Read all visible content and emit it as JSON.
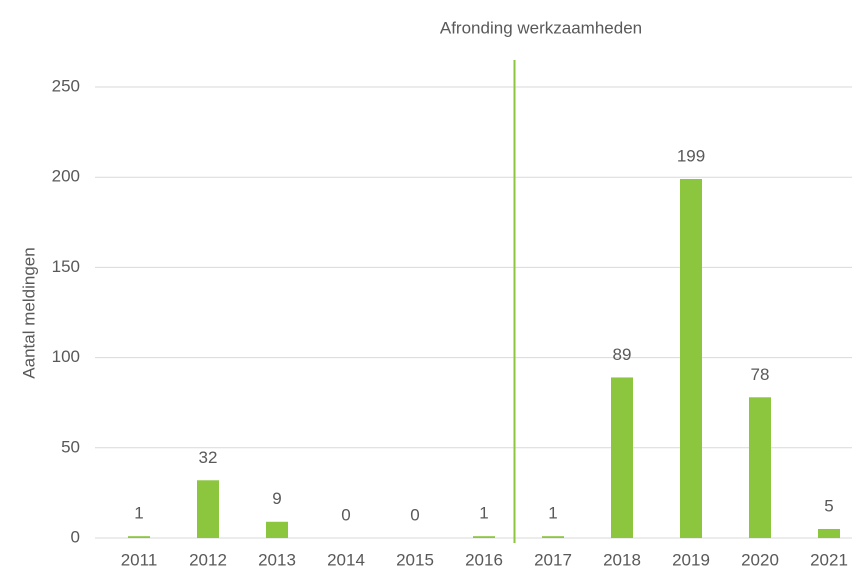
{
  "chart_data": {
    "type": "bar",
    "annotation": "Afronding werkzaamheden",
    "ylabel": "Aantal meldingen",
    "categories": [
      "2011",
      "2012",
      "2013",
      "2014",
      "2015",
      "2016",
      "2017",
      "2018",
      "2019",
      "2020",
      "2021"
    ],
    "values": [
      1,
      32,
      9,
      0,
      0,
      1,
      1,
      89,
      199,
      78,
      5
    ],
    "color": "#8cc63f",
    "ylim": [
      0,
      250
    ],
    "yticks": [
      0,
      50,
      100,
      150,
      200,
      250
    ],
    "grid": true
  }
}
